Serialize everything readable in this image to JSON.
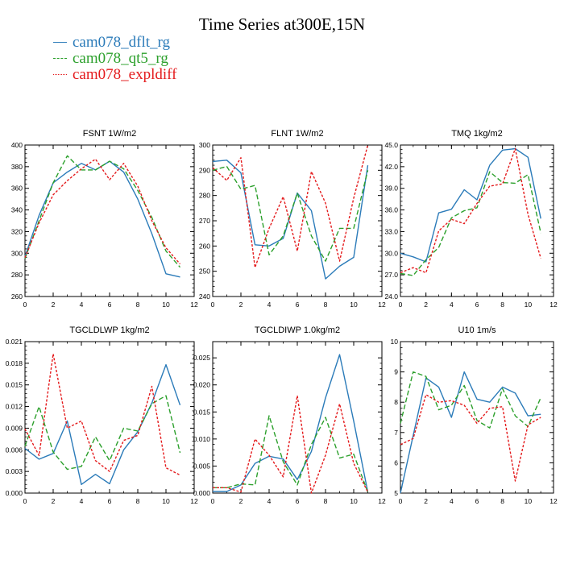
{
  "title": "Time Series at300E,15N",
  "colors": {
    "dflt": "#2b7bb9",
    "qt5": "#2ca02c",
    "expl": "#e41a1c"
  },
  "chart_data": [
    {
      "type": "line",
      "title": "FSNT   1W/m2",
      "xlim": [
        0,
        12
      ],
      "ylim": [
        260,
        400
      ],
      "xticks": [
        "0",
        "2",
        "4",
        "6",
        "8",
        "10",
        "12"
      ],
      "yticks": [
        "260",
        "280",
        "300",
        "320",
        "340",
        "360",
        "380",
        "400"
      ],
      "series": [
        {
          "name": "cam078_dflt_rg",
          "values": [
            297,
            335,
            365,
            375,
            383,
            377,
            385,
            375,
            350,
            318,
            281,
            278
          ]
        },
        {
          "name": "cam078_qt5_rg",
          "values": [
            295,
            330,
            365,
            390,
            377,
            377,
            385,
            378,
            358,
            333,
            302,
            287
          ]
        },
        {
          "name": "cam078_expldiff",
          "values": [
            296,
            328,
            354,
            367,
            378,
            387,
            368,
            383,
            362,
            330,
            305,
            290
          ]
        }
      ]
    },
    {
      "type": "line",
      "title": "FLNT   1W/m2",
      "xlim": [
        0,
        12
      ],
      "ylim": [
        240,
        300
      ],
      "xticks": [
        "0",
        "2",
        "4",
        "6",
        "8",
        "10",
        "12"
      ],
      "yticks": [
        "240",
        "250",
        "260",
        "270",
        "280",
        "290",
        "300"
      ],
      "series": [
        {
          "name": "cam078_dflt_rg",
          "values": [
            293.5,
            294,
            289,
            260.5,
            260,
            263,
            281,
            274,
            247,
            252,
            255.5,
            292
          ]
        },
        {
          "name": "cam078_qt5_rg",
          "values": [
            290,
            291.5,
            282.5,
            284,
            256.5,
            264,
            281,
            264,
            254,
            267,
            267,
            290
          ]
        },
        {
          "name": "cam078_expldiff",
          "values": [
            291,
            286,
            295,
            251.5,
            267,
            279.5,
            258,
            289.5,
            277,
            254,
            279,
            300
          ]
        }
      ]
    },
    {
      "type": "line",
      "title": "TMQ   1kg/m2",
      "xlim": [
        0,
        12
      ],
      "ylim": [
        24,
        45
      ],
      "xticks": [
        "0",
        "2",
        "4",
        "6",
        "8",
        "10",
        "12"
      ],
      "yticks": [
        "24.0",
        "27.0",
        "30.0",
        "33.0",
        "36.0",
        "39.0",
        "42.0",
        "45.0"
      ],
      "series": [
        {
          "name": "cam078_dflt_rg",
          "values": [
            30.0,
            29.5,
            28.8,
            35.6,
            36.1,
            38.8,
            37.4,
            42.2,
            44.3,
            44.5,
            43.3,
            34.8
          ]
        },
        {
          "name": "cam078_qt5_rg",
          "values": [
            27.2,
            26.9,
            29.1,
            30.8,
            34.9,
            35.9,
            36.3,
            41.3,
            39.8,
            39.7,
            40.9,
            32.8
          ]
        },
        {
          "name": "cam078_expldiff",
          "values": [
            27.3,
            28.0,
            27.3,
            33.1,
            34.7,
            34.1,
            36.9,
            39.3,
            39.6,
            44.5,
            35.4,
            29.3
          ]
        }
      ]
    },
    {
      "type": "line",
      "title": "TGCLDLWP   1kg/m2",
      "xlim": [
        0,
        12
      ],
      "ylim": [
        0,
        0.021
      ],
      "xticks": [
        "0",
        "2",
        "4",
        "6",
        "8",
        "10",
        "12"
      ],
      "yticks": [
        "0.000",
        "0.003",
        "0.006",
        "0.009",
        "0.012",
        "0.015",
        "0.018",
        "0.021"
      ],
      "series": [
        {
          "name": "cam078_dflt_rg",
          "values": [
            0.0062,
            0.0047,
            0.0055,
            0.01,
            0.0012,
            0.0026,
            0.0013,
            0.006,
            0.0085,
            0.0125,
            0.0178,
            0.0122
          ]
        },
        {
          "name": "cam078_qt5_rg",
          "values": [
            0.0065,
            0.012,
            0.0057,
            0.0033,
            0.0037,
            0.0078,
            0.0045,
            0.009,
            0.0086,
            0.0124,
            0.0135,
            0.0056
          ]
        },
        {
          "name": "cam078_expldiff",
          "values": [
            0.0089,
            0.0052,
            0.0193,
            0.009,
            0.01,
            0.0045,
            0.003,
            0.0073,
            0.008,
            0.0148,
            0.0035,
            0.0025
          ]
        }
      ]
    },
    {
      "type": "line",
      "title": "TGCLDIWP   1.0kg/m2",
      "xlim": [
        0,
        12
      ],
      "ylim": [
        0,
        0.028
      ],
      "xticks": [
        "0",
        "2",
        "4",
        "6",
        "8",
        "10",
        "12"
      ],
      "yticks": [
        "0.000",
        "0.005",
        "0.010",
        "0.015",
        "0.020",
        "0.025"
      ],
      "series": [
        {
          "name": "cam078_dflt_rg",
          "values": [
            0.0003,
            0.0003,
            0.0015,
            0.0055,
            0.0068,
            0.0063,
            0.0025,
            0.0077,
            0.0176,
            0.0256,
            0.0133,
            0.0002
          ]
        },
        {
          "name": "cam078_qt5_rg",
          "values": [
            0.001,
            0.001,
            0.0017,
            0.0015,
            0.0143,
            0.0058,
            0.0015,
            0.009,
            0.014,
            0.0065,
            0.0072,
            0.0002
          ]
        },
        {
          "name": "cam078_expldiff",
          "values": [
            0.001,
            0.001,
            0.0002,
            0.01,
            0.007,
            0.003,
            0.018,
            0.0,
            0.007,
            0.0165,
            0.0055,
            0.0002
          ]
        }
      ]
    },
    {
      "type": "line",
      "title": "U10   1m/s",
      "xlim": [
        0,
        12
      ],
      "ylim": [
        5,
        10
      ],
      "xticks": [
        "0",
        "2",
        "4",
        "6",
        "8",
        "10",
        "12"
      ],
      "yticks": [
        "5",
        "6",
        "7",
        "8",
        "9",
        "10"
      ],
      "series": [
        {
          "name": "cam078_dflt_rg",
          "values": [
            5.0,
            6.9,
            8.8,
            8.5,
            7.5,
            9.0,
            8.1,
            8.0,
            8.5,
            8.3,
            7.55,
            7.6
          ]
        },
        {
          "name": "cam078_qt5_rg",
          "values": [
            7.3,
            9.0,
            8.85,
            7.75,
            7.9,
            8.55,
            7.4,
            7.15,
            8.45,
            7.55,
            7.2,
            8.15
          ]
        },
        {
          "name": "cam078_expldiff",
          "values": [
            6.6,
            6.8,
            8.25,
            8.0,
            8.05,
            7.9,
            7.3,
            7.8,
            7.85,
            5.4,
            7.25,
            7.5
          ]
        }
      ]
    }
  ]
}
